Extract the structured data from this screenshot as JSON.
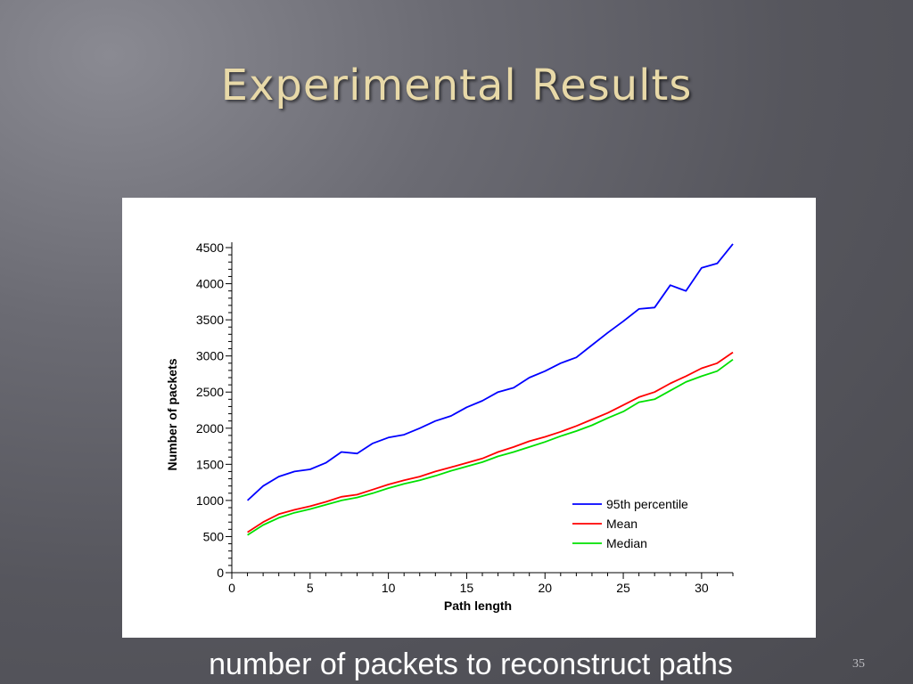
{
  "slide": {
    "title": "Experimental Results",
    "caption": "number of packets to reconstruct paths",
    "page_number": "35"
  },
  "chart_data": {
    "type": "line",
    "title": "",
    "xlabel": "Path length",
    "ylabel": "Number of packets",
    "xlim": [
      0,
      32
    ],
    "ylim": [
      0,
      4500
    ],
    "x_ticks": [
      0,
      5,
      10,
      15,
      20,
      25,
      30
    ],
    "y_ticks": [
      0,
      500,
      1000,
      1500,
      2000,
      2500,
      3000,
      3500,
      4000,
      4500
    ],
    "grid": false,
    "legend_position": "bottom-right",
    "x": [
      1,
      2,
      3,
      4,
      5,
      6,
      7,
      8,
      9,
      10,
      11,
      12,
      13,
      14,
      15,
      16,
      17,
      18,
      19,
      20,
      21,
      22,
      23,
      24,
      25,
      26,
      27,
      28,
      29,
      30,
      31,
      32
    ],
    "series": [
      {
        "name": "95th percentile",
        "color": "#0000ff",
        "values": [
          1000,
          1200,
          1330,
          1400,
          1430,
          1520,
          1670,
          1650,
          1790,
          1870,
          1910,
          2000,
          2100,
          2170,
          2290,
          2380,
          2500,
          2560,
          2700,
          2790,
          2900,
          2980,
          3150,
          3320,
          3480,
          3650,
          3670,
          3980,
          3900,
          4220,
          4280,
          4550
        ]
      },
      {
        "name": "Mean",
        "color": "#ff0000",
        "values": [
          560,
          700,
          810,
          870,
          920,
          980,
          1050,
          1080,
          1150,
          1220,
          1280,
          1330,
          1400,
          1460,
          1520,
          1580,
          1670,
          1740,
          1820,
          1880,
          1950,
          2030,
          2120,
          2210,
          2320,
          2430,
          2500,
          2620,
          2720,
          2830,
          2900,
          3050
        ]
      },
      {
        "name": "Median",
        "color": "#00e000",
        "values": [
          520,
          660,
          760,
          830,
          880,
          940,
          1000,
          1040,
          1100,
          1170,
          1230,
          1280,
          1340,
          1410,
          1470,
          1530,
          1610,
          1670,
          1740,
          1810,
          1890,
          1960,
          2040,
          2140,
          2230,
          2360,
          2400,
          2520,
          2640,
          2720,
          2790,
          2950
        ]
      }
    ]
  }
}
